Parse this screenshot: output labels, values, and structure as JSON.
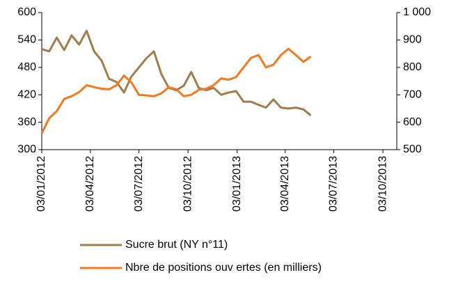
{
  "chart_data": {
    "type": "line",
    "x": [
      "03/01/2012",
      "17/01/2012",
      "31/01/2012",
      "14/02/2012",
      "28/02/2012",
      "13/03/2012",
      "27/03/2012",
      "10/04/2012",
      "24/04/2012",
      "08/05/2012",
      "22/05/2012",
      "05/06/2012",
      "19/06/2012",
      "03/07/2012",
      "17/07/2012",
      "31/07/2012",
      "14/08/2012",
      "28/08/2012",
      "11/09/2012",
      "25/09/2012",
      "09/10/2012",
      "23/10/2012",
      "06/11/2012",
      "20/11/2012",
      "04/12/2012",
      "18/12/2012",
      "01/01/2013",
      "15/01/2013",
      "29/01/2013",
      "12/02/2013",
      "26/02/2013",
      "12/03/2013",
      "26/03/2013",
      "09/04/2013",
      "23/04/2013",
      "07/05/2013",
      "21/05/2013"
    ],
    "series": [
      {
        "name": "Sucre brut (NY n°11)",
        "color": "#a07d4a",
        "values": [
          520,
          515,
          545,
          518,
          550,
          530,
          560,
          515,
          495,
          455,
          448,
          425,
          460,
          480,
          500,
          515,
          465,
          435,
          430,
          440,
          470,
          435,
          430,
          435,
          420,
          425,
          428,
          405,
          405,
          398,
          392,
          410,
          392,
          390,
          392,
          388,
          375
        ]
      },
      {
        "name": "Nbre de positions ouv ertes (en milliers)",
        "color": "#f47a20",
        "axis": "y2",
        "values": [
          560,
          615,
          640,
          685,
          695,
          710,
          735,
          728,
          722,
          720,
          735,
          770,
          745,
          700,
          698,
          695,
          705,
          728,
          720,
          695,
          700,
          718,
          722,
          735,
          760,
          755,
          765,
          800,
          835,
          845,
          800,
          810,
          845,
          868,
          845,
          820,
          840
        ]
      }
    ],
    "xlim": [
      "03/01/2012",
      "29/10/2013"
    ],
    "xticks": [
      "03/01/2012",
      "03/04/2012",
      "03/07/2012",
      "03/10/2012",
      "03/01/2013",
      "03/04/2013",
      "03/07/2013",
      "03/10/2013"
    ],
    "ylim": [
      300,
      600
    ],
    "yticks": [
      300,
      360,
      420,
      480,
      540,
      600
    ],
    "y2lim": [
      500,
      1000
    ],
    "y2ticks": [
      500,
      600,
      700,
      800,
      900,
      {
        "value": 1000,
        "label": "1 000"
      }
    ],
    "legend": "bottom"
  }
}
